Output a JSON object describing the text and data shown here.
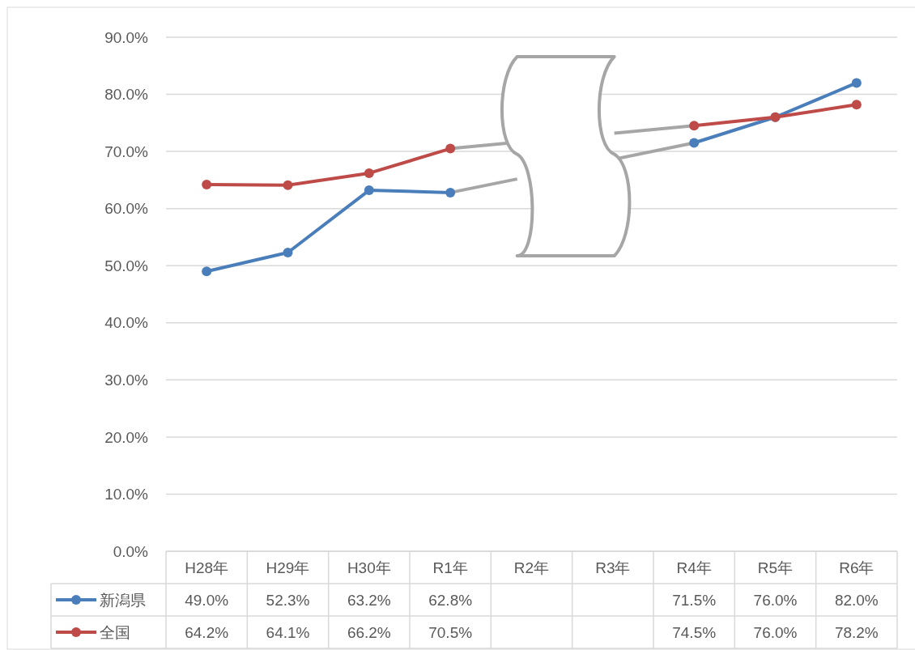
{
  "chart_data": {
    "type": "line",
    "categories": [
      "H28年",
      "H29年",
      "H30年",
      "R1年",
      "R2年",
      "R3年",
      "R4年",
      "R5年",
      "R6年"
    ],
    "series": [
      {
        "name": "新潟県",
        "color": "#4a7ebb",
        "values": [
          49.0,
          52.3,
          63.2,
          62.8,
          null,
          null,
          71.5,
          76.0,
          82.0
        ],
        "value_labels": [
          "49.0%",
          "52.3%",
          "63.2%",
          "62.8%",
          null,
          null,
          "71.5%",
          "76.0%",
          "82.0%"
        ]
      },
      {
        "name": "全国",
        "color": "#be4b48",
        "values": [
          64.2,
          64.1,
          66.2,
          70.5,
          null,
          null,
          74.5,
          76.0,
          78.2
        ],
        "value_labels": [
          "64.2%",
          "64.1%",
          "66.2%",
          "70.5%",
          null,
          null,
          "74.5%",
          "76.0%",
          "78.2%"
        ]
      }
    ],
    "ylim": [
      0,
      90
    ],
    "yticks": [
      {
        "value": 0,
        "label": "0.0%"
      },
      {
        "value": 10,
        "label": "10.0%"
      },
      {
        "value": 20,
        "label": "20.0%"
      },
      {
        "value": 30,
        "label": "30.0%"
      },
      {
        "value": 40,
        "label": "40.0%"
      },
      {
        "value": 50,
        "label": "50.0%"
      },
      {
        "value": 60,
        "label": "60.0%"
      },
      {
        "value": 70,
        "label": "70.0%"
      },
      {
        "value": 80,
        "label": "80.0%"
      },
      {
        "value": 90,
        "label": "90.0%"
      }
    ],
    "grid": "y",
    "legend": "bottom",
    "marker": "circle",
    "line_style": "solid"
  }
}
